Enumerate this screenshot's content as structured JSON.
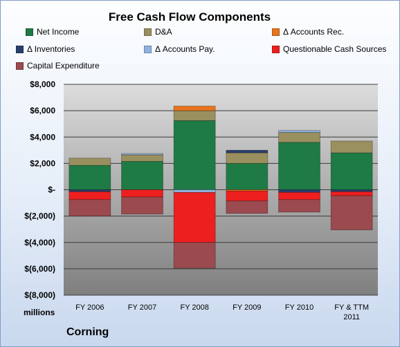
{
  "chart_data": {
    "type": "bar",
    "stacked": true,
    "title": "Free Cash Flow Components",
    "categories": [
      "FY 2006",
      "FY 2007",
      "FY 2008",
      "FY 2009",
      "FY 2010",
      "FY & TTM 2011"
    ],
    "series": [
      {
        "name": "Net Income",
        "color": "#1e7b45",
        "values": [
          1850,
          2150,
          5250,
          2000,
          3600,
          2800
        ]
      },
      {
        "name": "D&A",
        "color": "#9a8f5f",
        "values": [
          550,
          500,
          750,
          800,
          750,
          900
        ]
      },
      {
        "name": "Δ Accounts Rec.",
        "color": "#e8731c",
        "values": [
          0,
          0,
          350,
          0,
          0,
          0
        ]
      },
      {
        "name": "Δ Inventories",
        "color": "#2a3f6e",
        "values": [
          0,
          0,
          0,
          200,
          0,
          0
        ]
      },
      {
        "name": "Δ Accounts Pay.",
        "color": "#8fb3de",
        "values": [
          0,
          100,
          0,
          0,
          150,
          0
        ]
      },
      {
        "name": "Questionable Cash Sources",
        "color": "#ee1f1f",
        "values": [
          -600,
          -550,
          -3800,
          -750,
          -550,
          -300
        ]
      },
      {
        "name": "Capital Expenditure",
        "color": "#9b4a4f",
        "values": [
          -1250,
          -1300,
          -1950,
          -950,
          -950,
          -2600
        ]
      }
    ],
    "extra_negative": {
      "Δ Inventories": [
        -150,
        0,
        0,
        0,
        -200,
        -150
      ],
      "Δ Accounts Pay.": [
        0,
        0,
        -200,
        0,
        0,
        0
      ],
      "Δ Accounts Rec.": [
        0,
        0,
        0,
        -100,
        0,
        0
      ]
    },
    "ylim": [
      -8000,
      8000
    ],
    "yticks": [
      8000,
      6000,
      4000,
      2000,
      0,
      -2000,
      -4000,
      -6000,
      -8000
    ],
    "ytick_labels": [
      "$8,000",
      "$6,000",
      "$4,000",
      "$2,000",
      "$-",
      "$(2,000)",
      "$(4,000)",
      "$(6,000)",
      "$(8,000)"
    ],
    "grid": true,
    "legend_position": "top"
  },
  "unit_label": "millions",
  "company_label": "Corning"
}
